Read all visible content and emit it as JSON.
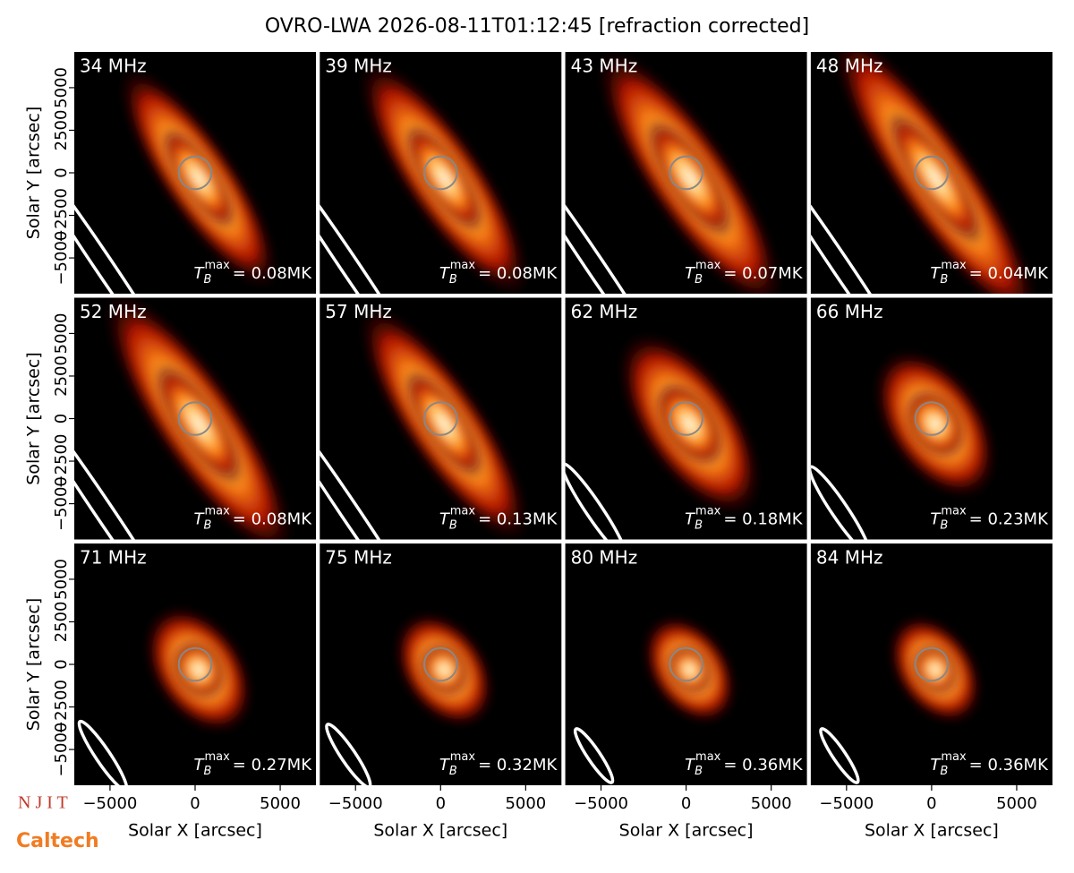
{
  "chart_data": {
    "type": "image_grid",
    "title": "OVRO-LWA 2026-08-11T01:12:45 [refraction corrected]",
    "x_label": "Solar X [arcsec]",
    "y_label": "Solar Y [arcsec]",
    "xlim": [
      -7100,
      7100
    ],
    "ylim": [
      -7100,
      7100
    ],
    "xticks": [
      {
        "value": -5000,
        "label": "−5000"
      },
      0,
      5000
    ],
    "yticks": [
      {
        "value": -5000,
        "label": "−5000"
      },
      {
        "value": -2500,
        "label": "−2500"
      },
      0,
      2500,
      5000
    ],
    "tmax_symbol": "T",
    "tmax_sub": "B",
    "tmax_sup": "max",
    "panels": [
      {
        "freq": "34 MHz",
        "tmax": "= 0.08MK"
      },
      {
        "freq": "39 MHz",
        "tmax": "= 0.08MK"
      },
      {
        "freq": "43 MHz",
        "tmax": "= 0.07MK"
      },
      {
        "freq": "48 MHz",
        "tmax": "= 0.04MK"
      },
      {
        "freq": "52 MHz",
        "tmax": "= 0.08MK"
      },
      {
        "freq": "57 MHz",
        "tmax": "= 0.13MK"
      },
      {
        "freq": "62 MHz",
        "tmax": "= 0.18MK"
      },
      {
        "freq": "66 MHz",
        "tmax": "= 0.23MK"
      },
      {
        "freq": "71 MHz",
        "tmax": "= 0.27MK"
      },
      {
        "freq": "75 MHz",
        "tmax": "= 0.32MK"
      },
      {
        "freq": "80 MHz",
        "tmax": "= 0.36MK"
      },
      {
        "freq": "84 MHz",
        "tmax": "= 0.36MK"
      }
    ],
    "logos": [
      "N J I T",
      "Caltech"
    ]
  }
}
